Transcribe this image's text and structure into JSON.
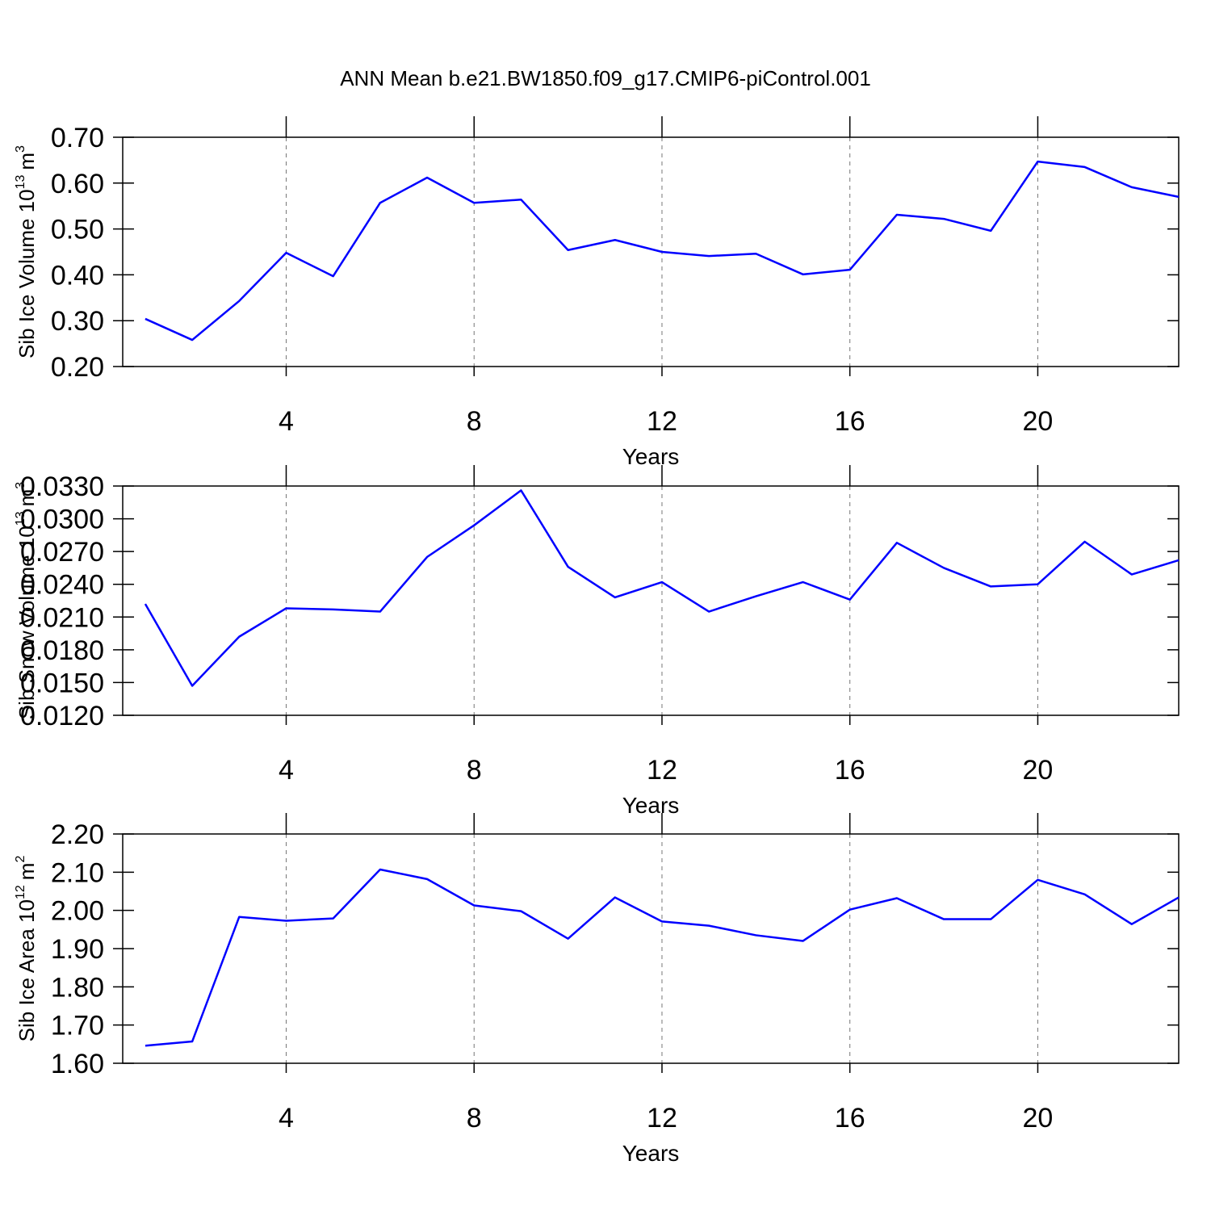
{
  "chart_data": [
    {
      "type": "line",
      "title": "ANN Mean b.e21.BW1850.f09_g17.CMIP6-piControl.001",
      "ylabel": {
        "text": "Sib Ice Volume 10",
        "exp": "13",
        "unit": "m",
        "unit_exp": "3"
      },
      "xlabel": "Years",
      "x": [
        1,
        2,
        3,
        4,
        5,
        6,
        7,
        8,
        9,
        10,
        11,
        12,
        13,
        14,
        15,
        16,
        17,
        18,
        19,
        20,
        21,
        22,
        23
      ],
      "series": [
        {
          "color": "#0000ff",
          "values": [
            0.304,
            0.258,
            0.343,
            0.448,
            0.397,
            0.557,
            0.612,
            0.557,
            0.564,
            0.454,
            0.476,
            0.45,
            0.441,
            0.446,
            0.401,
            0.411,
            0.531,
            0.522,
            0.496,
            0.647,
            0.635,
            0.591,
            0.57
          ]
        }
      ],
      "xlim": [
        0.52,
        23
      ],
      "xticks": [
        4,
        8,
        12,
        16,
        20
      ],
      "xgrid": true,
      "ylim": [
        0.2,
        0.7
      ],
      "yticks": [
        {
          "value": 0.2,
          "label": "0.20"
        },
        {
          "value": 0.3,
          "label": "0.30"
        },
        {
          "value": 0.4,
          "label": "0.40"
        },
        {
          "value": 0.5,
          "label": "0.50"
        },
        {
          "value": 0.6,
          "label": "0.60"
        },
        {
          "value": 0.7,
          "label": "0.70"
        }
      ]
    },
    {
      "type": "line",
      "ylabel": {
        "text": "Sib Snow Volume 10",
        "exp": "13",
        "unit": "m",
        "unit_exp": "3"
      },
      "xlabel": "Years",
      "x": [
        1,
        2,
        3,
        4,
        5,
        6,
        7,
        8,
        9,
        10,
        11,
        12,
        13,
        14,
        15,
        16,
        17,
        18,
        19,
        20,
        21,
        22,
        23
      ],
      "series": [
        {
          "color": "#0000ff",
          "values": [
            0.0222,
            0.0147,
            0.0192,
            0.0218,
            0.0217,
            0.0215,
            0.0265,
            0.0294,
            0.0326,
            0.0256,
            0.0228,
            0.0242,
            0.0215,
            0.0229,
            0.0242,
            0.0226,
            0.0278,
            0.0255,
            0.0238,
            0.024,
            0.0279,
            0.0249,
            0.0262
          ]
        }
      ],
      "xlim": [
        0.52,
        23
      ],
      "xticks": [
        4,
        8,
        12,
        16,
        20
      ],
      "xgrid": true,
      "ylim": [
        0.012,
        0.033
      ],
      "yticks": [
        {
          "value": 0.012,
          "label": "0.0120"
        },
        {
          "value": 0.015,
          "label": "0.0150"
        },
        {
          "value": 0.018,
          "label": "0.0180"
        },
        {
          "value": 0.021,
          "label": "0.0210"
        },
        {
          "value": 0.024,
          "label": "0.0240"
        },
        {
          "value": 0.027,
          "label": "0.0270"
        },
        {
          "value": 0.03,
          "label": "0.0300"
        },
        {
          "value": 0.033,
          "label": "0.0330"
        }
      ]
    },
    {
      "type": "line",
      "ylabel": {
        "text": "Sib Ice Area 10",
        "exp": "12",
        "unit": "m",
        "unit_exp": "2"
      },
      "xlabel": "Years",
      "x": [
        1,
        2,
        3,
        4,
        5,
        6,
        7,
        8,
        9,
        10,
        11,
        12,
        13,
        14,
        15,
        16,
        17,
        18,
        19,
        20,
        21,
        22,
        23
      ],
      "series": [
        {
          "color": "#0000ff",
          "values": [
            1.646,
            1.657,
            1.983,
            1.973,
            1.979,
            2.107,
            2.082,
            2.013,
            1.998,
            1.926,
            2.034,
            1.971,
            1.96,
            1.935,
            1.92,
            2.002,
            2.032,
            1.977,
            1.977,
            2.08,
            2.042,
            1.964,
            2.034
          ]
        }
      ],
      "xlim": [
        0.52,
        23
      ],
      "xticks": [
        4,
        8,
        12,
        16,
        20
      ],
      "xgrid": true,
      "ylim": [
        1.6,
        2.2
      ],
      "yticks": [
        {
          "value": 1.6,
          "label": "1.60"
        },
        {
          "value": 1.7,
          "label": "1.70"
        },
        {
          "value": 1.8,
          "label": "1.80"
        },
        {
          "value": 1.9,
          "label": "1.90"
        },
        {
          "value": 2.0,
          "label": "2.00"
        },
        {
          "value": 2.1,
          "label": "2.10"
        },
        {
          "value": 2.2,
          "label": "2.20"
        }
      ]
    }
  ]
}
